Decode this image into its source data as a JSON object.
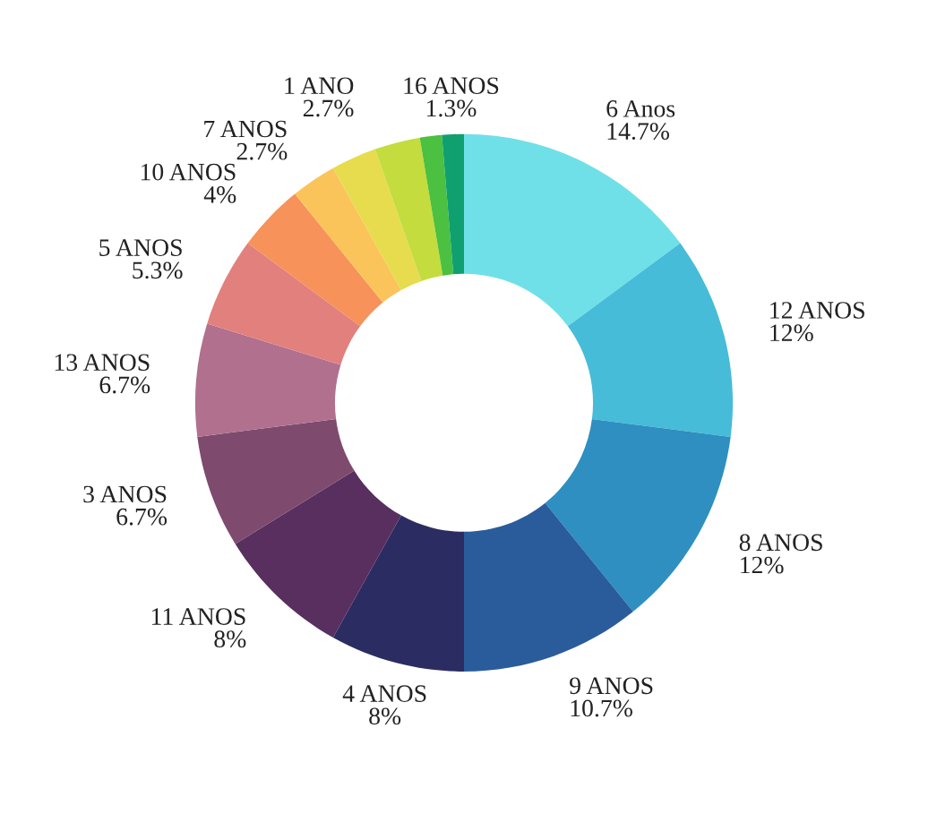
{
  "chart_data": {
    "type": "donut",
    "categories": [
      "6 Anos",
      "12 ANOS",
      "8 ANOS",
      "9 ANOS",
      "4 ANOS",
      "11 ANOS",
      "3 ANOS",
      "13 ANOS",
      "5 ANOS",
      "10 ANOS",
      "7 ANOS",
      null,
      "1 ANO",
      null,
      "16 ANOS"
    ],
    "values": [
      14.7,
      12,
      12,
      10.7,
      8,
      8,
      6.7,
      6.7,
      5.3,
      4,
      2.7,
      2.7,
      2.7,
      1.3,
      1.3
    ],
    "colors": [
      "#6fe0e8",
      "#46bcd8",
      "#2e8fc0",
      "#2a5c9c",
      "#2b2d62",
      "#582f5e",
      "#7e4a6e",
      "#b0708e",
      "#e2807e",
      "#f6925a",
      "#fbc45a",
      "#e6dc4e",
      "#c4dc3e",
      "#4cc040",
      "#10a070"
    ],
    "value_labels": [
      "14.7%",
      "12%",
      "12%",
      "10.7%",
      "8%",
      "8%",
      "6.7%",
      "6.7%",
      "5.3%",
      "4%",
      "2.7%",
      null,
      "2.7%",
      null,
      "1.3%"
    ],
    "legend": false
  }
}
